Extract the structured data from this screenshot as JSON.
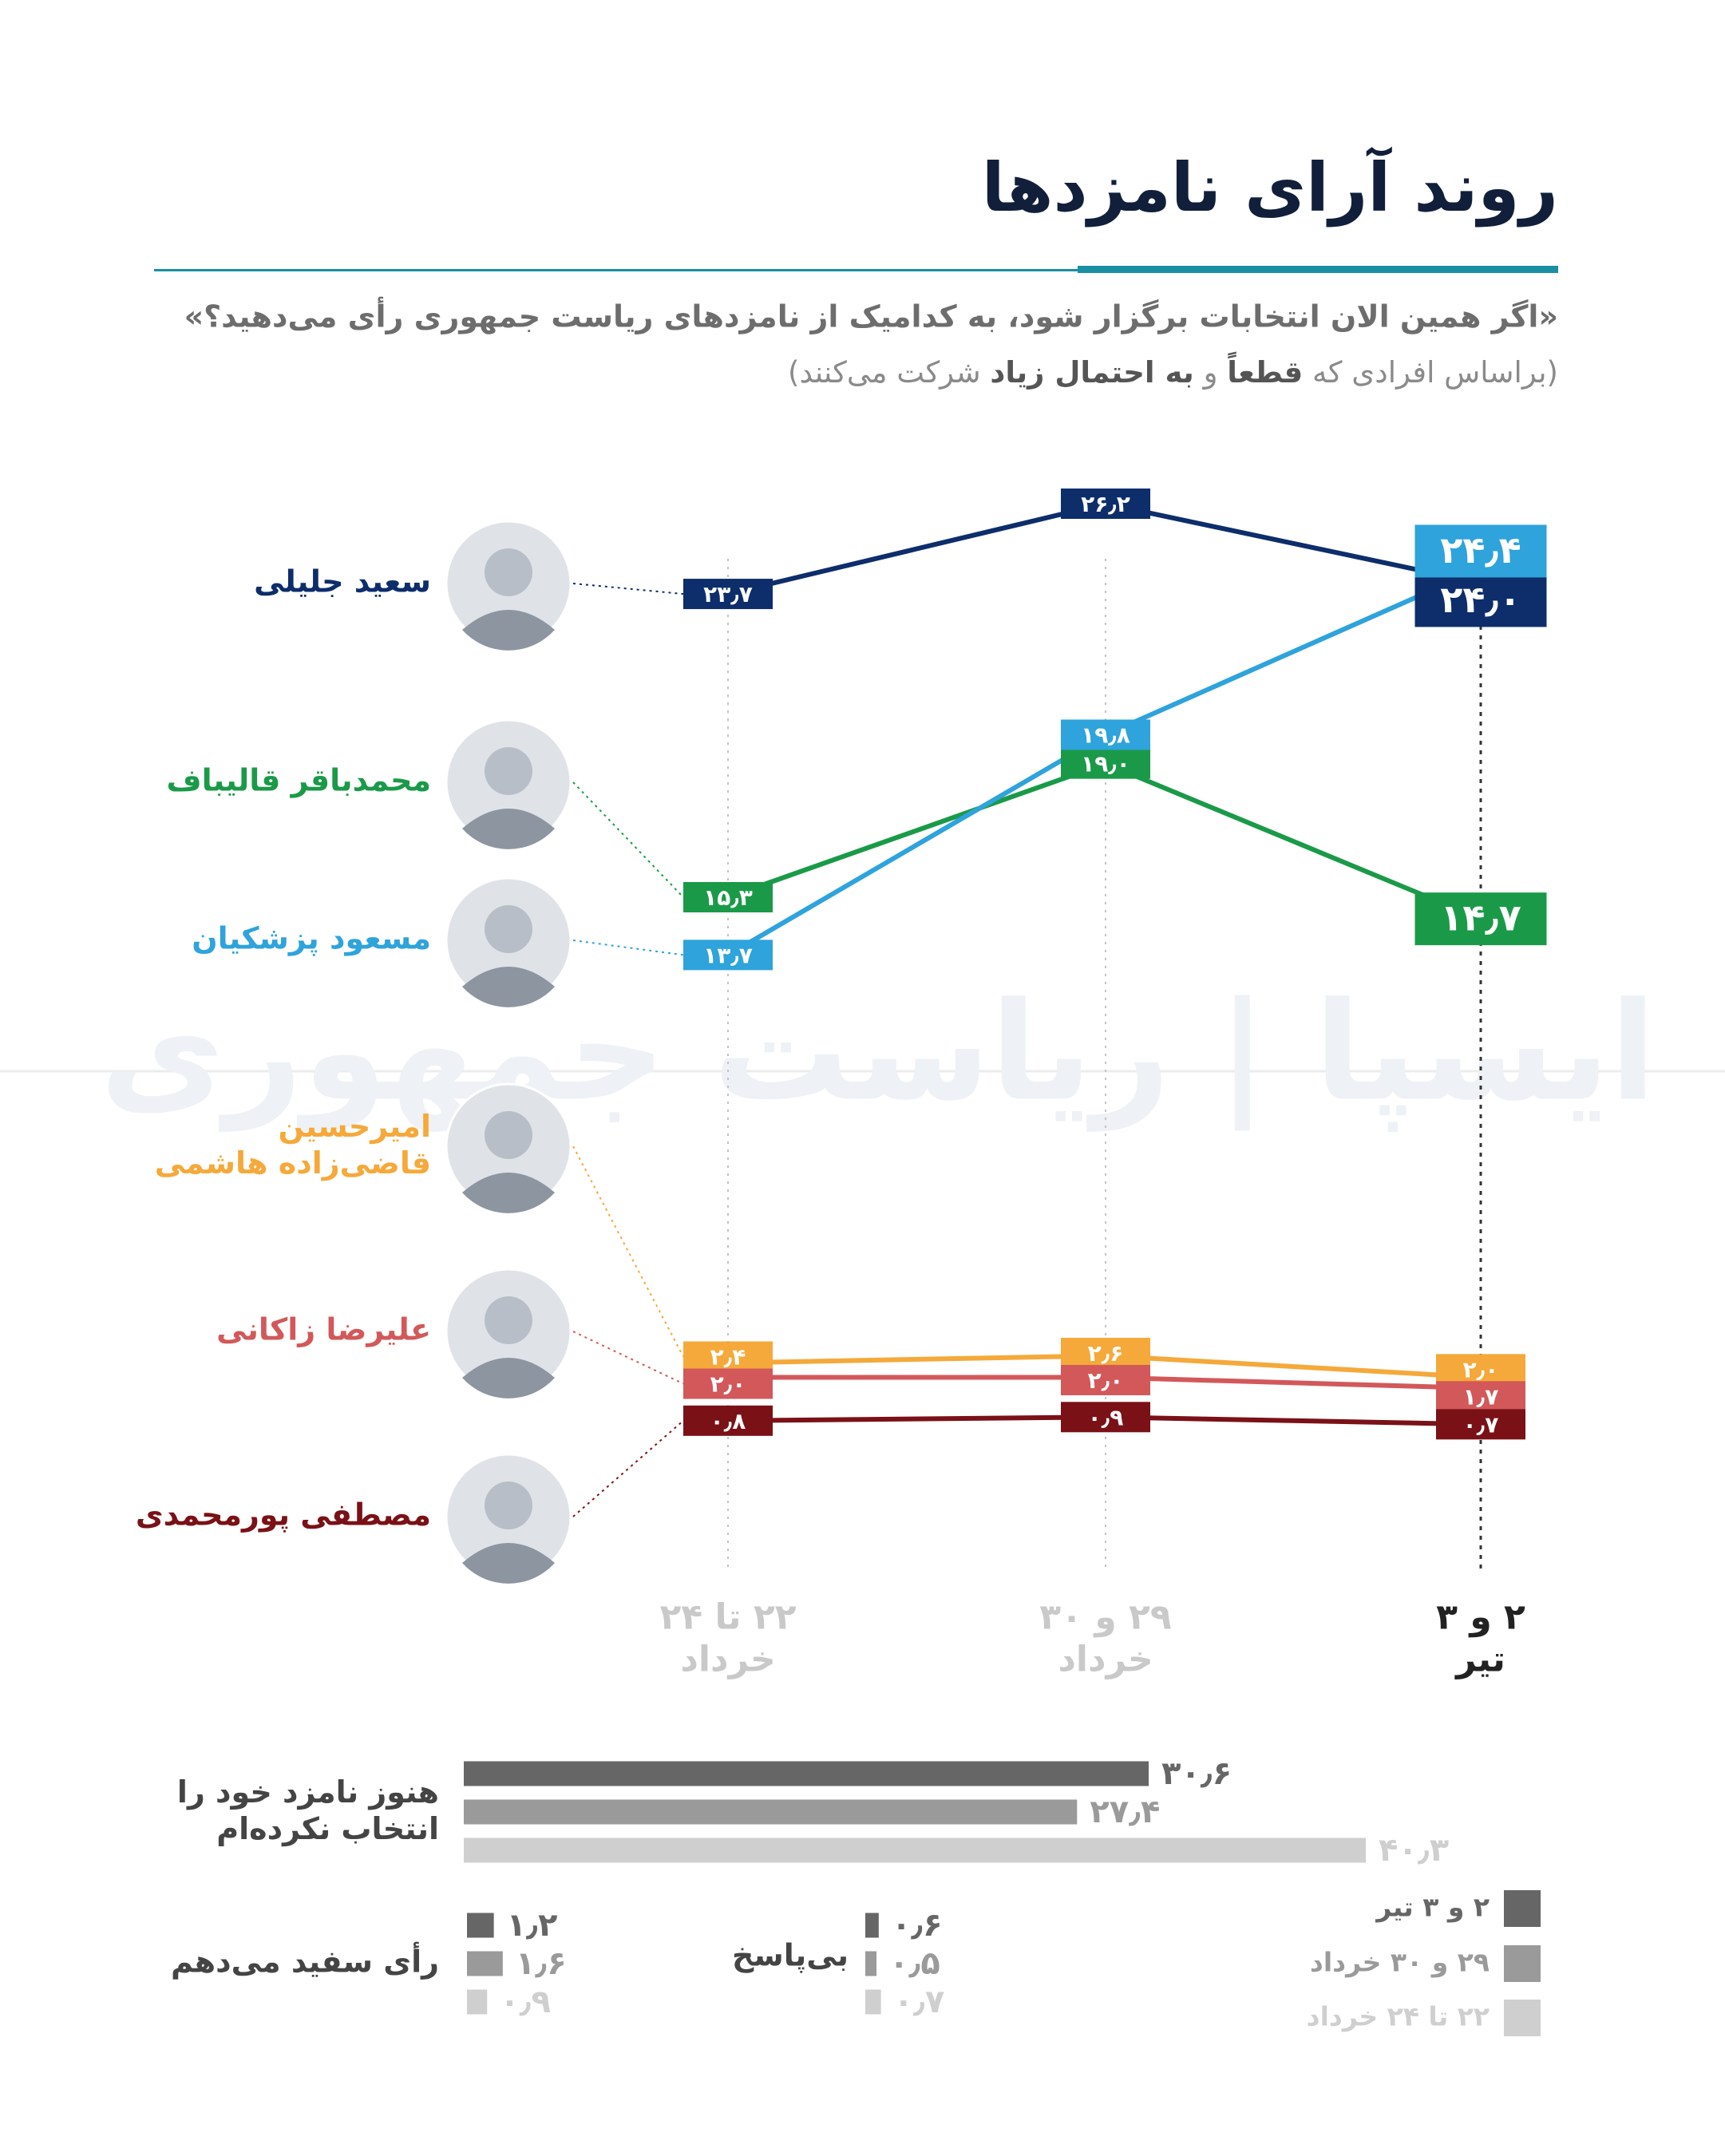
{
  "title": "روند آرای نامزدها",
  "question": "«اگر همین الان انتخابات برگزار شود، به کدامیک از نامزدهای ریاست جمهوری رأی می‌دهید؟»",
  "note": [
    "(براساس افرادی که",
    "قطعاً",
    "و",
    "به احتمال زیاد",
    "شرکت می‌کنند)"
  ],
  "watermark": "ایسپا | ریاست جمهوری",
  "chart_data": [
    {
      "type": "line",
      "categories": [
        "۲۲ تا ۲۴\nخرداد",
        "۲۹ و ۳۰\nخرداد",
        "۲ و ۳\nتیر"
      ],
      "series": [
        {
          "name": "سعید جلیلی",
          "color": "#0d2d6b",
          "values": [
            23.7,
            26.2,
            24.0
          ],
          "value_labels": [
            "۲۳٫۷",
            "۲۶٫۲",
            "۲۴٫۰"
          ]
        },
        {
          "name": "محمدباقر قالیباف",
          "color": "#1a9a48",
          "values": [
            15.3,
            19.0,
            14.7
          ],
          "value_labels": [
            "۱۵٫۳",
            "۱۹٫۰",
            "۱۴٫۷"
          ]
        },
        {
          "name": "مسعود پزشکیان",
          "color": "#2ea3dc",
          "values": [
            13.7,
            19.8,
            24.4
          ],
          "value_labels": [
            "۱۳٫۷",
            "۱۹٫۸",
            "۲۴٫۴"
          ]
        },
        {
          "name": "امیرحسین\nقاضی‌زاده هاشمی",
          "color": "#f5a93a",
          "values": [
            2.4,
            2.6,
            2.0
          ],
          "value_labels": [
            "۲٫۴",
            "۲٫۶",
            "۲٫۰"
          ]
        },
        {
          "name": "علیرضا زاکانی",
          "color": "#d2585a",
          "values": [
            2.0,
            2.0,
            1.7
          ],
          "value_labels": [
            "۲٫۰",
            "۲٫۰",
            "۱٫۷"
          ]
        },
        {
          "name": "مصطفی پورمحمدی",
          "color": "#7a1116",
          "values": [
            0.8,
            0.9,
            0.7
          ],
          "value_labels": [
            "۰٫۸",
            "۰٫۹",
            "۰٫۷"
          ]
        }
      ]
    },
    {
      "type": "bar",
      "orientation": "horizontal",
      "categories": [
        "هنوز نامزد خود را\nانتخاب نکرده‌ام",
        "رأی سفید می‌دهم",
        "بی‌پاسخ"
      ],
      "series": [
        {
          "name": "۲ و ۳ تیر",
          "color": "#666666",
          "values": [
            30.6,
            1.2,
            0.6
          ],
          "value_labels": [
            "۳۰٫۶",
            "۱٫۲",
            "۰٫۶"
          ]
        },
        {
          "name": "۲۹ و ۳۰ خرداد",
          "color": "#9a9a9a",
          "values": [
            27.4,
            1.6,
            0.5
          ],
          "value_labels": [
            "۲۷٫۴",
            "۱٫۶",
            "۰٫۵"
          ]
        },
        {
          "name": "۲۲ تا ۲۴ خرداد",
          "color": "#cfcfcf",
          "values": [
            40.3,
            0.9,
            0.7
          ],
          "value_labels": [
            "۴۰٫۳",
            "۰٫۹",
            "۰٫۷"
          ]
        }
      ]
    }
  ]
}
